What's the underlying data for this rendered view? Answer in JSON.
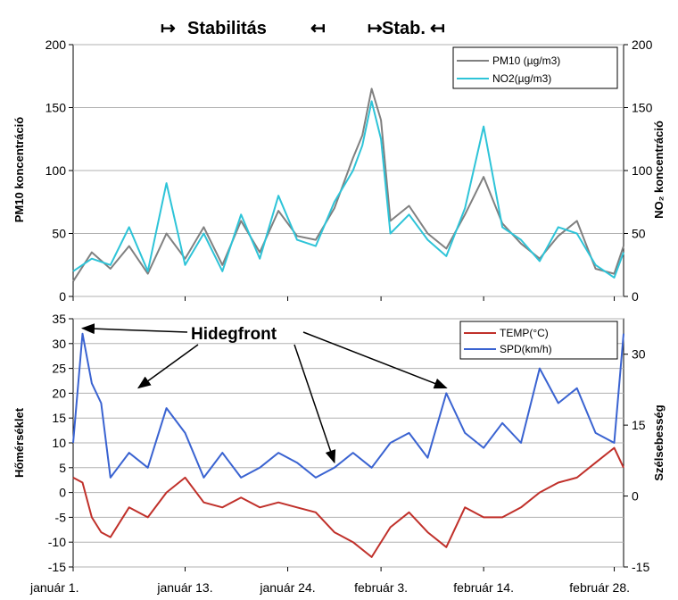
{
  "header": {
    "bracket_left": "↦",
    "stabilitas": "Stabilitás",
    "bracket_left_close": "↤",
    "stab_open": "↦",
    "stab": "Stab.",
    "stab_close": "↤"
  },
  "colors": {
    "pm10": "#808080",
    "no2": "#2ec4d8",
    "temp": "#c0302a",
    "spd": "#3a63d1",
    "grid": "#b0b0b0"
  },
  "chart_data": [
    {
      "id": "top",
      "type": "line",
      "ylabel_left": "PM10 koncentráció",
      "ylabel_right": "NO₂ koncentráció",
      "ylim": [
        0,
        200
      ],
      "yticks": [
        "0",
        "50",
        "100",
        "150",
        "200"
      ],
      "yticks_right": [
        "0",
        "50",
        "100",
        "150",
        "200"
      ],
      "grid": true,
      "legend_position": "top-right",
      "series": [
        {
          "name": "PM10 (µg/m3)",
          "day": [
            0,
            2,
            4,
            6,
            8,
            10,
            12,
            14,
            16,
            18,
            20,
            22,
            24,
            26,
            28,
            30,
            31,
            32,
            33,
            34,
            36,
            38,
            40,
            42,
            44,
            46,
            48,
            50,
            52,
            54,
            56,
            58,
            59
          ],
          "values": [
            12,
            35,
            22,
            40,
            18,
            50,
            30,
            55,
            25,
            60,
            35,
            68,
            48,
            45,
            70,
            110,
            128,
            165,
            140,
            60,
            72,
            50,
            38,
            65,
            95,
            58,
            42,
            30,
            48,
            60,
            22,
            18,
            40
          ]
        },
        {
          "name": "NO2(µg/m3)",
          "day": [
            0,
            2,
            4,
            6,
            8,
            10,
            12,
            14,
            16,
            18,
            20,
            22,
            24,
            26,
            28,
            30,
            31,
            32,
            33,
            34,
            36,
            38,
            40,
            42,
            44,
            46,
            48,
            50,
            52,
            54,
            56,
            58,
            59
          ],
          "values": [
            20,
            30,
            25,
            55,
            20,
            90,
            25,
            50,
            20,
            65,
            30,
            80,
            45,
            40,
            75,
            100,
            120,
            155,
            125,
            50,
            65,
            45,
            32,
            70,
            135,
            55,
            45,
            28,
            55,
            50,
            25,
            15,
            35
          ]
        }
      ]
    },
    {
      "id": "bottom",
      "type": "line",
      "ylabel_left": "Hőmérséklet",
      "ylabel_right": "Szélsebesség",
      "ylim": [
        -15,
        35
      ],
      "yticks": [
        "-15",
        "-10",
        "-5",
        "0",
        "5",
        "10",
        "15",
        "20",
        "25",
        "30",
        "35"
      ],
      "yticks_right": [
        "-15",
        "0",
        "15",
        "30"
      ],
      "grid": true,
      "legend_position": "top-right",
      "series": [
        {
          "name": "TEMP(°C)",
          "day": [
            0,
            1,
            2,
            3,
            4,
            6,
            8,
            10,
            12,
            14,
            16,
            18,
            20,
            22,
            24,
            26,
            28,
            30,
            32,
            34,
            36,
            38,
            40,
            42,
            44,
            46,
            48,
            50,
            52,
            54,
            56,
            58,
            59
          ],
          "values": [
            3,
            2,
            -5,
            -8,
            -9,
            -3,
            -5,
            0,
            3,
            -2,
            -3,
            -1,
            -3,
            -2,
            -3,
            -4,
            -8,
            -10,
            -13,
            -7,
            -4,
            -8,
            -11,
            -3,
            -5,
            -5,
            -3,
            0,
            2,
            3,
            6,
            9,
            5
          ]
        },
        {
          "name": "SPD(km/h)",
          "day": [
            0,
            1,
            2,
            3,
            4,
            6,
            8,
            10,
            12,
            14,
            16,
            18,
            20,
            22,
            24,
            26,
            28,
            30,
            32,
            34,
            36,
            38,
            40,
            42,
            44,
            46,
            48,
            50,
            52,
            54,
            56,
            58,
            59
          ],
          "values": [
            10,
            32,
            22,
            18,
            3,
            8,
            5,
            17,
            12,
            3,
            8,
            3,
            5,
            8,
            6,
            3,
            5,
            8,
            5,
            10,
            12,
            7,
            20,
            12,
            9,
            14,
            10,
            25,
            18,
            21,
            12,
            10,
            32
          ]
        }
      ],
      "annotation": "Hidegfront",
      "annotation_targets_day": [
        1,
        7,
        28,
        40
      ]
    }
  ],
  "x_axis": {
    "tick_labels": [
      "január 1.",
      "január 13.",
      "január 24.",
      "február 3.",
      "február 14.",
      "február 28."
    ],
    "tick_days": [
      0,
      12,
      23,
      33,
      44,
      58
    ],
    "range_days": [
      0,
      59
    ]
  }
}
